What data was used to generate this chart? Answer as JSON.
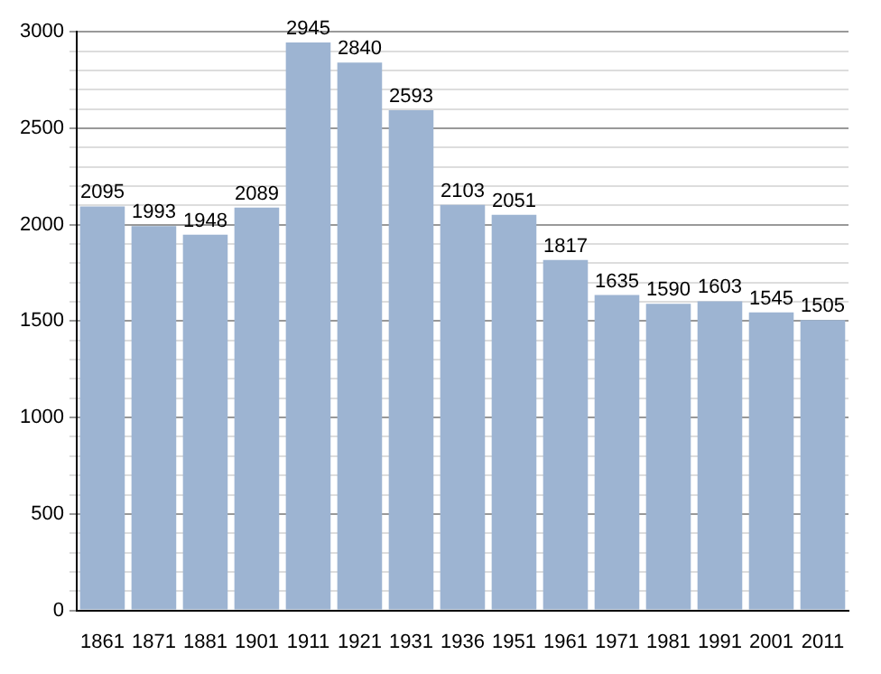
{
  "chart_data": {
    "type": "bar",
    "categories": [
      "1861",
      "1871",
      "1881",
      "1901",
      "1911",
      "1921",
      "1931",
      "1936",
      "1951",
      "1961",
      "1971",
      "1981",
      "1991",
      "2001",
      "2011"
    ],
    "values": [
      2095,
      1993,
      1948,
      2089,
      2945,
      2840,
      2593,
      2103,
      2051,
      1817,
      1635,
      1590,
      1603,
      1545,
      1505
    ],
    "color": "#9db4d2",
    "ylim": [
      0,
      3000
    ],
    "yticks": [
      0,
      {
        "value": 100,
        "label": null
      },
      {
        "value": 200,
        "label": null
      },
      {
        "value": 300,
        "label": null
      },
      {
        "value": 400,
        "label": null
      },
      500,
      {
        "value": 600,
        "label": null
      },
      {
        "value": 700,
        "label": null
      },
      {
        "value": 800,
        "label": null
      },
      {
        "value": 900,
        "label": null
      },
      1000,
      {
        "value": 1100,
        "label": null
      },
      {
        "value": 1200,
        "label": null
      },
      {
        "value": 1300,
        "label": null
      },
      {
        "value": 1400,
        "label": null
      },
      1500,
      {
        "value": 1600,
        "label": null
      },
      {
        "value": 1700,
        "label": null
      },
      {
        "value": 1800,
        "label": null
      },
      {
        "value": 1900,
        "label": null
      },
      2000,
      {
        "value": 2100,
        "label": null
      },
      {
        "value": 2200,
        "label": null
      },
      {
        "value": 2300,
        "label": null
      },
      {
        "value": 2400,
        "label": null
      },
      2500,
      {
        "value": 2600,
        "label": null
      },
      {
        "value": 2700,
        "label": null
      },
      {
        "value": 2800,
        "label": null
      },
      {
        "value": 2900,
        "label": null
      },
      3000
    ],
    "grid": "y",
    "data_labels": true
  }
}
